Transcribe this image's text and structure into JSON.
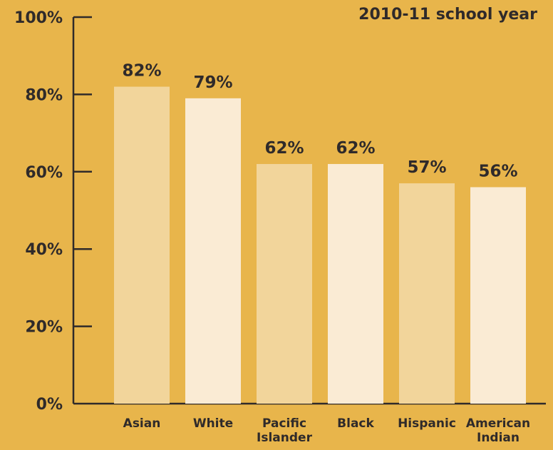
{
  "chart_data": {
    "type": "bar",
    "title": "2010-11 school year",
    "xlabel": "",
    "ylabel": "",
    "ylim": [
      0,
      100
    ],
    "yticks": [
      {
        "value": 0,
        "label": "0%"
      },
      {
        "value": 20,
        "label": "20%"
      },
      {
        "value": 40,
        "label": "40%"
      },
      {
        "value": 60,
        "label": "60%"
      },
      {
        "value": 80,
        "label": "80%"
      },
      {
        "value": 100,
        "label": "100%"
      }
    ],
    "categories": [
      [
        "Asian"
      ],
      [
        "White"
      ],
      [
        "Pacific",
        "Islander"
      ],
      [
        "Black"
      ],
      [
        "Hispanic"
      ],
      [
        "American",
        "Indian"
      ]
    ],
    "values": [
      82,
      79,
      62,
      62,
      57,
      56
    ],
    "value_labels": [
      "82%",
      "79%",
      "62%",
      "62%",
      "57%",
      "56%"
    ],
    "bar_colors": [
      "#f2d59b",
      "#faebd4",
      "#f2d59b",
      "#faebd4",
      "#f2d59b",
      "#faebd4"
    ],
    "background_color": "#e8b54b",
    "axis_color": "#2f2a2a",
    "grid": false,
    "legend": "none"
  }
}
